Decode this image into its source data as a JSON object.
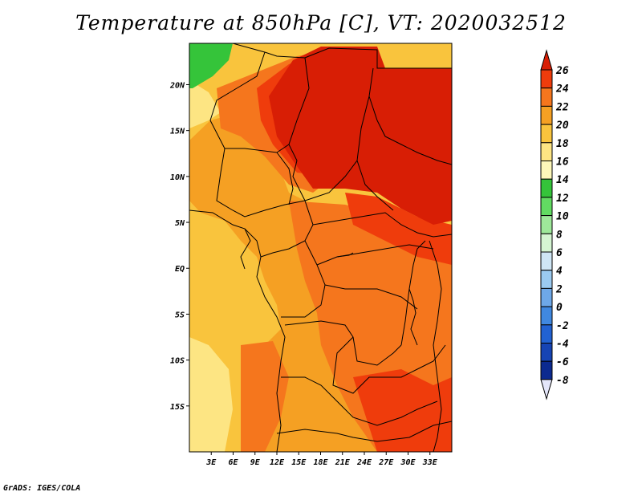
{
  "title": "Temperature at 850hPa [C], VT: 2020032512",
  "credit": "GrADS: IGES/COLA",
  "map": {
    "lon_range": [
      0,
      36
    ],
    "lat_range": [
      -20,
      24.5
    ],
    "lon_ticks": [
      {
        "value": 3,
        "label": "3E"
      },
      {
        "value": 6,
        "label": "6E"
      },
      {
        "value": 9,
        "label": "9E"
      },
      {
        "value": 12,
        "label": "12E"
      },
      {
        "value": 15,
        "label": "15E"
      },
      {
        "value": 18,
        "label": "18E"
      },
      {
        "value": 21,
        "label": "21E"
      },
      {
        "value": 24,
        "label": "24E"
      },
      {
        "value": 27,
        "label": "27E"
      },
      {
        "value": 30,
        "label": "30E"
      },
      {
        "value": 33,
        "label": "33E"
      }
    ],
    "lat_ticks": [
      {
        "value": 20,
        "label": "20N"
      },
      {
        "value": 15,
        "label": "15N"
      },
      {
        "value": 10,
        "label": "10N"
      },
      {
        "value": 5,
        "label": "5N"
      },
      {
        "value": 0,
        "label": "EQ"
      },
      {
        "value": -5,
        "label": "5S"
      },
      {
        "value": -10,
        "label": "10S"
      },
      {
        "value": -15,
        "label": "15S"
      }
    ]
  },
  "colorbar": {
    "levels": [
      26,
      24,
      22,
      20,
      18,
      16,
      14,
      12,
      10,
      8,
      6,
      4,
      2,
      0,
      -2,
      -4,
      -6,
      -8
    ],
    "colors": [
      "#d81e05",
      "#ef3c0c",
      "#f5761d",
      "#f5a023",
      "#f9c43d",
      "#fde583",
      "#fdf7b9",
      "#35c43a",
      "#62db62",
      "#9ee89a",
      "#d5f5d2",
      "#cfe6f5",
      "#9bcaf0",
      "#6ea8e8",
      "#4088e0",
      "#2262d2",
      "#1644b4",
      "#0c2a90",
      "#071a6c"
    ]
  }
}
